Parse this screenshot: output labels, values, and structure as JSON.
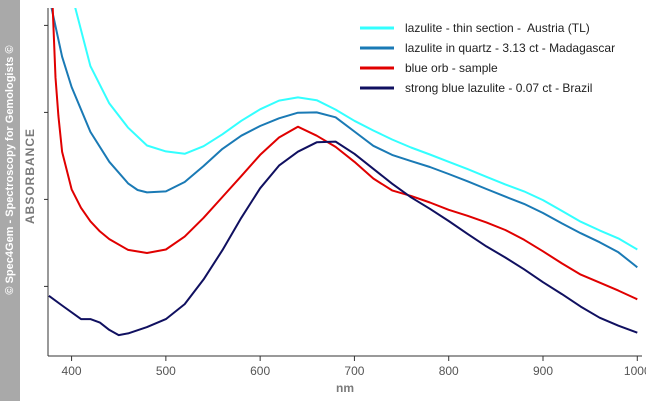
{
  "credit": "© Spec4Gem - Spectroscopy for Gemologists ©",
  "chart_data": {
    "type": "line",
    "title": "",
    "xlabel": "nm",
    "ylabel": "ABSORBANCE",
    "xlim": [
      375,
      1005
    ],
    "ylim": [
      0,
      10
    ],
    "xticks": [
      400,
      500,
      600,
      700,
      800,
      900,
      1000
    ],
    "y_tick_labels_shown": false,
    "grid": false,
    "legend_position": "top-right",
    "series": [
      {
        "name": "lazulite - thin section -  Austria (TL)",
        "color": "#33ffff",
        "points": [
          [
            403,
            10.1
          ],
          [
            420,
            8.33
          ],
          [
            440,
            7.26
          ],
          [
            460,
            6.56
          ],
          [
            480,
            6.05
          ],
          [
            500,
            5.88
          ],
          [
            520,
            5.81
          ],
          [
            540,
            6.03
          ],
          [
            560,
            6.37
          ],
          [
            580,
            6.76
          ],
          [
            600,
            7.09
          ],
          [
            620,
            7.34
          ],
          [
            640,
            7.43
          ],
          [
            660,
            7.35
          ],
          [
            680,
            7.08
          ],
          [
            700,
            6.76
          ],
          [
            720,
            6.48
          ],
          [
            740,
            6.22
          ],
          [
            760,
            5.99
          ],
          [
            780,
            5.79
          ],
          [
            800,
            5.58
          ],
          [
            820,
            5.37
          ],
          [
            840,
            5.15
          ],
          [
            860,
            4.93
          ],
          [
            880,
            4.73
          ],
          [
            900,
            4.48
          ],
          [
            920,
            4.17
          ],
          [
            940,
            3.86
          ],
          [
            960,
            3.61
          ],
          [
            980,
            3.38
          ],
          [
            1000,
            3.06
          ]
        ]
      },
      {
        "name": "lazulite in quartz - 3.13 ct - Madagascar",
        "color": "#1a7ab5",
        "points": [
          [
            378,
            10.1
          ],
          [
            390,
            8.6
          ],
          [
            400,
            7.73
          ],
          [
            420,
            6.44
          ],
          [
            440,
            5.58
          ],
          [
            460,
            4.96
          ],
          [
            470,
            4.77
          ],
          [
            480,
            4.7
          ],
          [
            500,
            4.73
          ],
          [
            520,
            5.0
          ],
          [
            540,
            5.46
          ],
          [
            560,
            5.95
          ],
          [
            580,
            6.33
          ],
          [
            600,
            6.61
          ],
          [
            620,
            6.83
          ],
          [
            640,
            6.99
          ],
          [
            660,
            7.0
          ],
          [
            680,
            6.86
          ],
          [
            700,
            6.45
          ],
          [
            720,
            6.04
          ],
          [
            740,
            5.78
          ],
          [
            760,
            5.6
          ],
          [
            780,
            5.43
          ],
          [
            800,
            5.23
          ],
          [
            820,
            5.02
          ],
          [
            840,
            4.8
          ],
          [
            860,
            4.58
          ],
          [
            880,
            4.37
          ],
          [
            900,
            4.11
          ],
          [
            920,
            3.81
          ],
          [
            940,
            3.53
          ],
          [
            960,
            3.27
          ],
          [
            980,
            2.98
          ],
          [
            1000,
            2.55
          ]
        ]
      },
      {
        "name": "blue orb - sample",
        "color": "#e00000",
        "points": [
          [
            380,
            10.0
          ],
          [
            383,
            8.0
          ],
          [
            386,
            6.9
          ],
          [
            390,
            5.87
          ],
          [
            400,
            4.79
          ],
          [
            410,
            4.26
          ],
          [
            420,
            3.87
          ],
          [
            430,
            3.58
          ],
          [
            440,
            3.36
          ],
          [
            460,
            3.05
          ],
          [
            480,
            2.96
          ],
          [
            500,
            3.06
          ],
          [
            520,
            3.43
          ],
          [
            540,
            3.97
          ],
          [
            560,
            4.57
          ],
          [
            580,
            5.17
          ],
          [
            600,
            5.78
          ],
          [
            620,
            6.28
          ],
          [
            640,
            6.59
          ],
          [
            660,
            6.33
          ],
          [
            680,
            6.01
          ],
          [
            700,
            5.58
          ],
          [
            720,
            5.1
          ],
          [
            740,
            4.76
          ],
          [
            760,
            4.6
          ],
          [
            780,
            4.41
          ],
          [
            800,
            4.2
          ],
          [
            820,
            4.03
          ],
          [
            840,
            3.84
          ],
          [
            860,
            3.62
          ],
          [
            880,
            3.34
          ],
          [
            900,
            3.01
          ],
          [
            920,
            2.66
          ],
          [
            940,
            2.34
          ],
          [
            960,
            2.11
          ],
          [
            980,
            1.88
          ],
          [
            1000,
            1.63
          ]
        ]
      },
      {
        "name": "strong blue lazulite - 0.07 ct - Brazil",
        "color": "#101060",
        "points": [
          [
            376,
            1.73
          ],
          [
            390,
            1.45
          ],
          [
            410,
            1.06
          ],
          [
            420,
            1.06
          ],
          [
            430,
            0.96
          ],
          [
            440,
            0.75
          ],
          [
            450,
            0.6
          ],
          [
            460,
            0.65
          ],
          [
            480,
            0.83
          ],
          [
            500,
            1.06
          ],
          [
            520,
            1.49
          ],
          [
            540,
            2.2
          ],
          [
            560,
            3.04
          ],
          [
            580,
            3.97
          ],
          [
            600,
            4.82
          ],
          [
            620,
            5.47
          ],
          [
            640,
            5.87
          ],
          [
            660,
            6.14
          ],
          [
            680,
            6.16
          ],
          [
            700,
            5.81
          ],
          [
            720,
            5.38
          ],
          [
            740,
            4.95
          ],
          [
            760,
            4.56
          ],
          [
            780,
            4.23
          ],
          [
            800,
            3.88
          ],
          [
            820,
            3.51
          ],
          [
            840,
            3.15
          ],
          [
            860,
            2.83
          ],
          [
            880,
            2.49
          ],
          [
            900,
            2.12
          ],
          [
            920,
            1.78
          ],
          [
            940,
            1.42
          ],
          [
            960,
            1.1
          ],
          [
            980,
            0.87
          ],
          [
            1000,
            0.67
          ]
        ]
      }
    ]
  }
}
